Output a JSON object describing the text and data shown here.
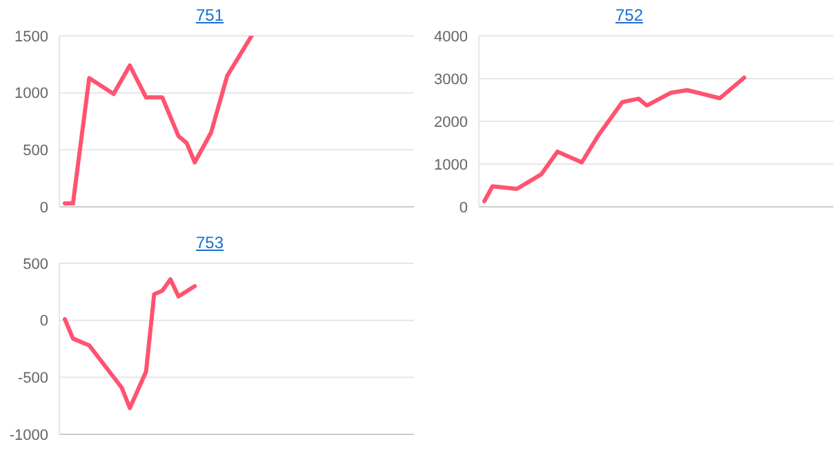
{
  "chart_data": [
    {
      "type": "line",
      "title": "751",
      "categories": [
        null,
        null,
        null,
        null,
        null,
        null,
        null,
        null,
        null,
        null,
        null,
        null,
        null,
        null,
        null,
        null,
        null,
        null,
        null,
        null,
        null,
        null,
        null,
        null,
        null,
        null,
        null,
        null,
        null,
        null,
        null,
        null,
        null,
        null,
        null,
        null,
        null,
        null,
        null,
        null,
        null,
        null,
        null,
        null
      ],
      "series": [
        {
          "color": "#ff5370",
          "values": [
            30,
            30,
            null,
            1130,
            null,
            null,
            990,
            null,
            1240,
            null,
            960,
            null,
            960,
            null,
            620,
            560,
            390,
            null,
            650,
            null,
            1150,
            null,
            null,
            1500,
            null,
            null,
            null,
            null,
            null,
            null,
            null,
            null,
            null,
            null,
            null,
            null,
            null,
            null,
            null,
            null,
            null,
            null,
            null,
            null
          ]
        }
      ],
      "ylim": [
        0,
        1500
      ],
      "yticks": [
        0,
        500,
        1000,
        1500
      ],
      "grid": "y",
      "marker": "none",
      "line_style": "solid"
    },
    {
      "type": "line",
      "title": "752",
      "categories": [
        null,
        null,
        null,
        null,
        null,
        null,
        null,
        null,
        null,
        null,
        null,
        null,
        null,
        null,
        null,
        null,
        null,
        null,
        null,
        null,
        null,
        null,
        null,
        null,
        null,
        null,
        null,
        null,
        null,
        null,
        null,
        null,
        null,
        null,
        null,
        null,
        null,
        null,
        null,
        null,
        null,
        null,
        null,
        null
      ],
      "series": [
        {
          "color": "#ff5370",
          "values": [
            130,
            480,
            null,
            null,
            420,
            null,
            null,
            760,
            null,
            1290,
            null,
            null,
            1040,
            null,
            1660,
            null,
            null,
            2450,
            null,
            2530,
            2370,
            null,
            null,
            2670,
            null,
            2730,
            null,
            null,
            null,
            2540,
            null,
            null,
            3020,
            null,
            null,
            null,
            null,
            null,
            null,
            null,
            null,
            null,
            null,
            null
          ]
        }
      ],
      "ylim": [
        0,
        4000
      ],
      "yticks": [
        0,
        1000,
        2000,
        3000,
        4000
      ],
      "grid": "y",
      "marker": "none",
      "line_style": "solid"
    },
    {
      "type": "line",
      "title": "753",
      "categories": [
        null,
        null,
        null,
        null,
        null,
        null,
        null,
        null,
        null,
        null,
        null,
        null,
        null,
        null,
        null,
        null,
        null,
        null,
        null,
        null,
        null,
        null,
        null,
        null,
        null,
        null,
        null,
        null,
        null,
        null,
        null,
        null,
        null,
        null,
        null,
        null,
        null,
        null,
        null,
        null,
        null,
        null,
        null,
        null
      ],
      "series": [
        {
          "color": "#ff5370",
          "values": [
            10,
            -160,
            null,
            -220,
            null,
            null,
            null,
            -590,
            -770,
            null,
            -450,
            230,
            260,
            360,
            210,
            null,
            300,
            null,
            null,
            null,
            null,
            null,
            null,
            null,
            null,
            null,
            null,
            null,
            null,
            null,
            null,
            null,
            null,
            null,
            null,
            null,
            null,
            null,
            null,
            null,
            null,
            null,
            null,
            null
          ]
        }
      ],
      "ylim": [
        -1000,
        500
      ],
      "yticks": [
        -1000,
        -500,
        0,
        500
      ],
      "grid": "y",
      "marker": "none",
      "line_style": "solid"
    }
  ]
}
